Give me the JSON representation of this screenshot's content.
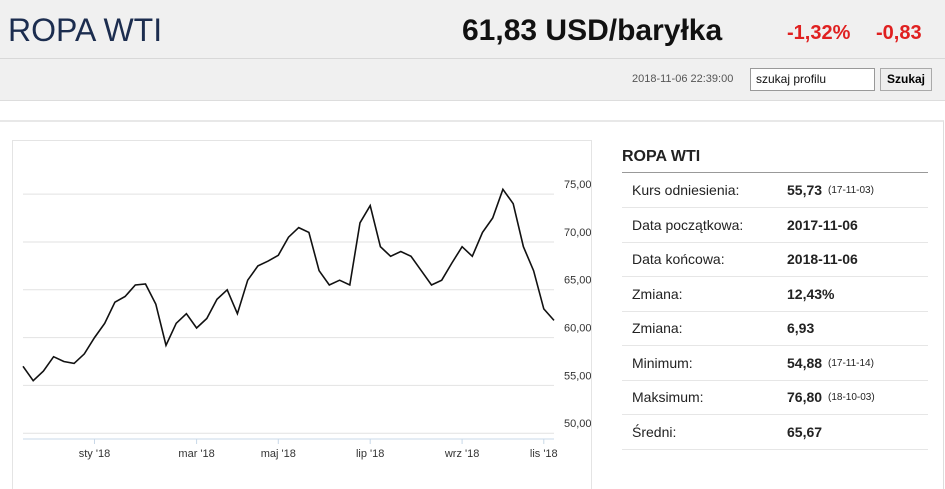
{
  "header": {
    "title": "ROPA WTI",
    "price": "61,83 USD/baryłka",
    "change_pct": "-1,32%",
    "change_abs": "-0,83"
  },
  "toolbar": {
    "datetime": "2018-11-06 22:39:00",
    "search_placeholder": "szukaj profilu",
    "search_button": "Szukaj"
  },
  "chart_data": {
    "type": "line",
    "color": "#111111",
    "grid": true,
    "categories": [
      null,
      null,
      null,
      null,
      null,
      null,
      null,
      "sty '18",
      null,
      null,
      null,
      null,
      null,
      null,
      null,
      null,
      null,
      "mar '18",
      null,
      null,
      null,
      null,
      null,
      null,
      null,
      "maj '18",
      null,
      null,
      null,
      null,
      null,
      null,
      null,
      null,
      "lip '18",
      null,
      null,
      null,
      null,
      null,
      null,
      null,
      null,
      "wrz '18",
      null,
      null,
      null,
      null,
      null,
      null,
      null,
      "lis '18",
      null
    ],
    "values": [
      57.0,
      55.5,
      56.5,
      58.0,
      57.5,
      57.3,
      58.3,
      60.0,
      61.5,
      63.7,
      64.3,
      65.5,
      65.6,
      63.5,
      59.2,
      61.5,
      62.5,
      61.0,
      62.0,
      64.0,
      65.0,
      62.5,
      66.0,
      67.5,
      68.0,
      68.6,
      70.5,
      71.5,
      71.0,
      67.0,
      65.5,
      66.0,
      65.5,
      72.0,
      73.8,
      69.5,
      68.5,
      69.0,
      68.5,
      67.0,
      65.5,
      66.0,
      67.8,
      69.5,
      68.5,
      71.0,
      72.5,
      75.5,
      74.0,
      69.5,
      67.0,
      63.0,
      61.8
    ],
    "ylim": [
      49.4,
      79.3
    ],
    "yticks": [
      {
        "value": 50,
        "label": "50,00"
      },
      {
        "value": 55,
        "label": "55,00"
      },
      {
        "value": 60,
        "label": "60,00"
      },
      {
        "value": 65,
        "label": "65,00"
      },
      {
        "value": 70,
        "label": "70,00"
      },
      {
        "value": 75,
        "label": "75,00"
      }
    ]
  },
  "table": {
    "title": "ROPA WTI",
    "rows": [
      [
        "Kurs odniesienia:",
        "55,73",
        "(17-11-03)"
      ],
      [
        "Data początkowa:",
        "2017-11-06"
      ],
      [
        "Data końcowa:",
        "2018-11-06"
      ],
      [
        "Zmiana:",
        "12,43%"
      ],
      [
        "Zmiana:",
        "6,93"
      ],
      [
        "Minimum:",
        "54,88",
        "(17-11-14)"
      ],
      [
        "Maksimum:",
        "76,80",
        "(18-10-03)"
      ],
      [
        "Średni:",
        "65,67"
      ]
    ]
  }
}
